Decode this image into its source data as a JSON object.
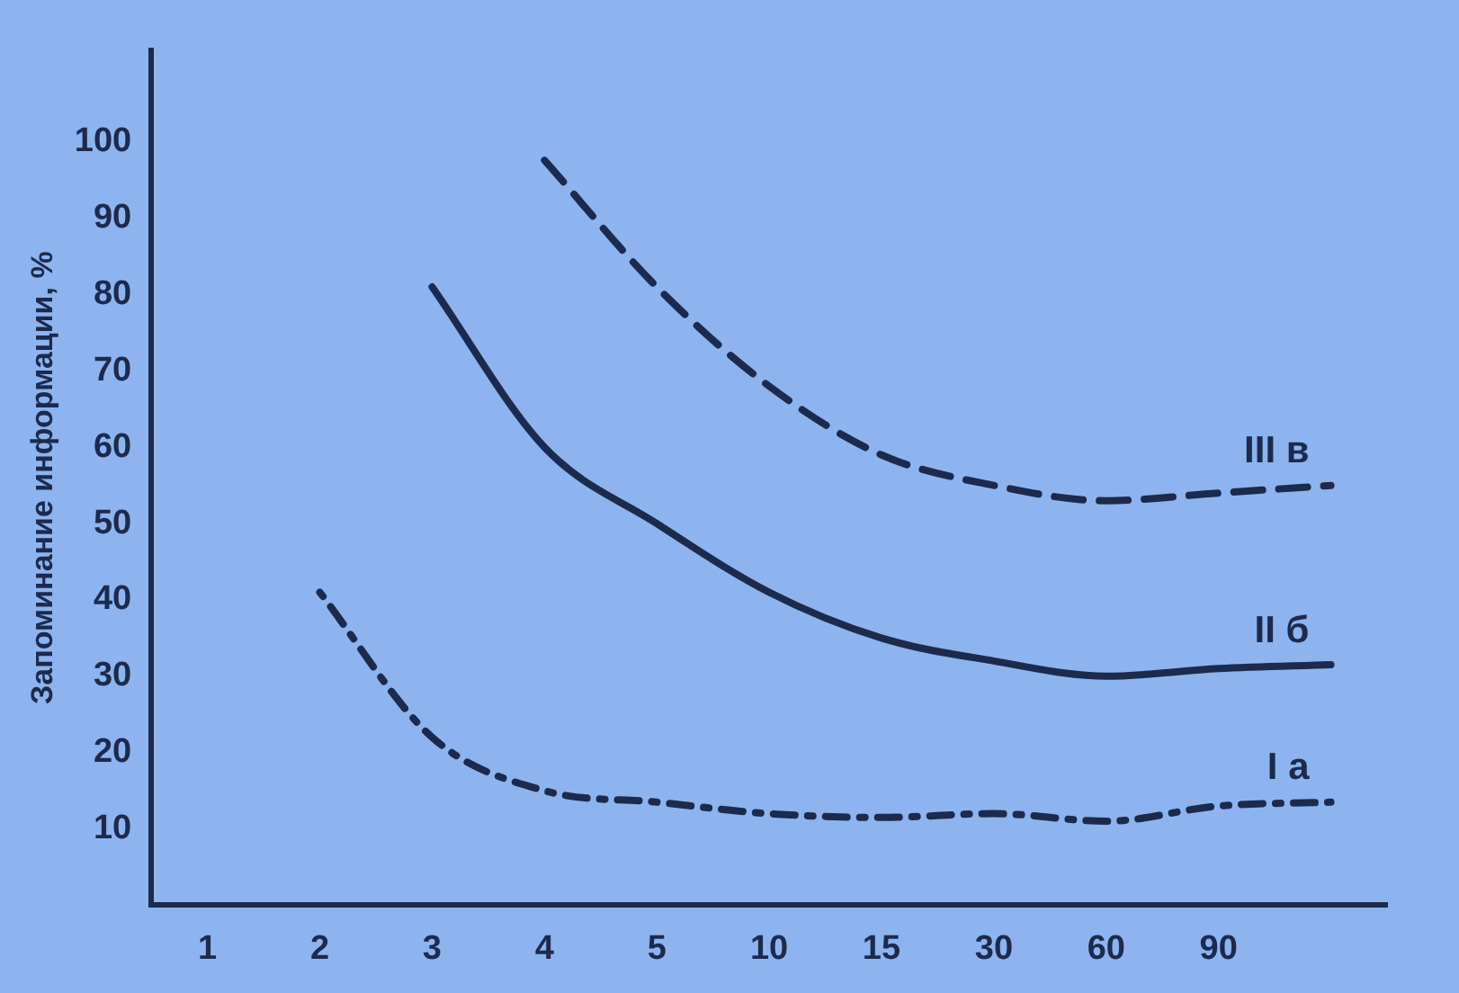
{
  "chart_data": {
    "type": "line",
    "ylabel": "Запоминание информации, %",
    "categories": [
      "1",
      "2",
      "3",
      "4",
      "5",
      "10",
      "15",
      "30",
      "60",
      "90",
      null
    ],
    "ylim": [
      0,
      112
    ],
    "yticks": [
      10,
      20,
      30,
      40,
      50,
      60,
      70,
      80,
      90,
      100
    ],
    "grid": false,
    "legend": false,
    "marker": "none",
    "series": [
      {
        "name": "I а",
        "color": "#1c2a4e",
        "line_style": "dotted",
        "values": [
          null,
          41,
          22,
          15,
          13.5,
          12,
          11.5,
          12,
          11,
          13,
          13.5
        ]
      },
      {
        "name": "II б",
        "color": "#1c2a4e",
        "line_style": "solid",
        "values": [
          null,
          null,
          81,
          60,
          50,
          41,
          35,
          32,
          30,
          31,
          31.5
        ]
      },
      {
        "name": "III в",
        "color": "#1c2a4e",
        "line_style": "dashed",
        "values": [
          null,
          null,
          null,
          97.6,
          81,
          68,
          59,
          55,
          53,
          54,
          55
        ]
      }
    ]
  }
}
